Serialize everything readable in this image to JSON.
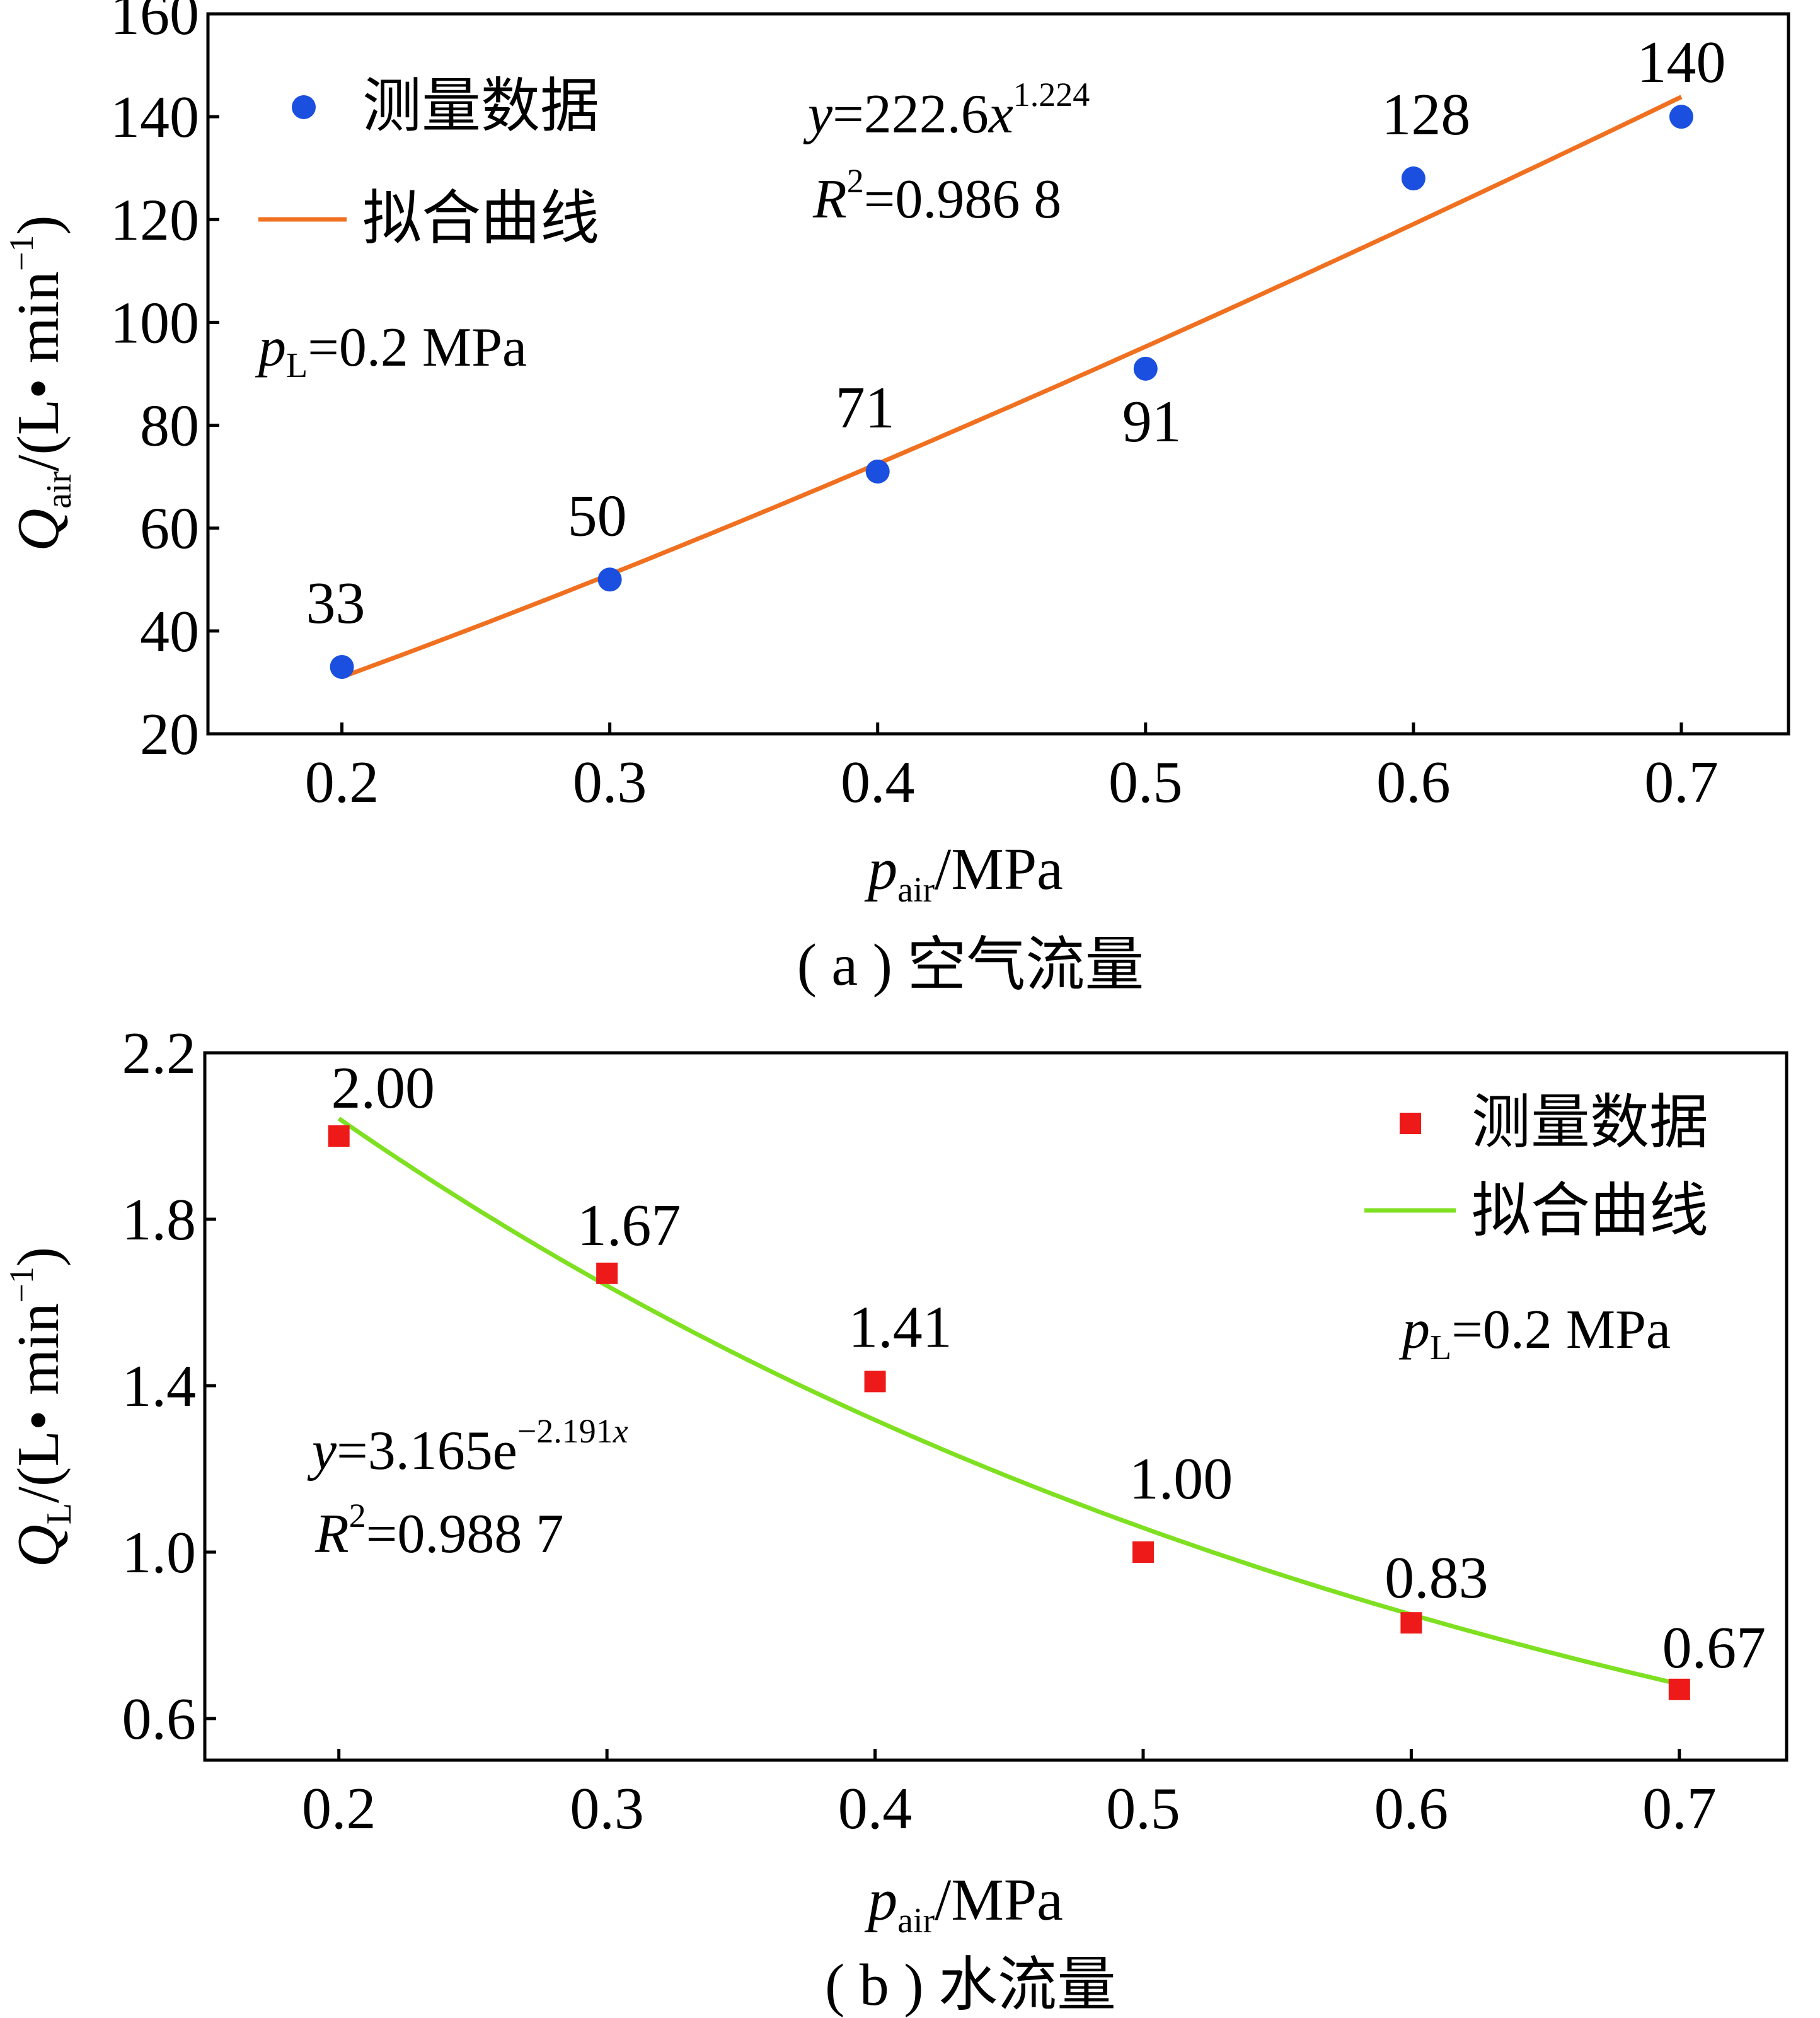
{
  "chart_data": [
    {
      "type": "scatter",
      "caption": "( a ) 空气流量",
      "xlabel": {
        "main": "p",
        "sub": "air",
        "unit": "/MPa"
      },
      "ylabel": {
        "main": "Q",
        "sub": "air",
        "unit": "/(L• min",
        "sup": "−1",
        "close": ")"
      },
      "xlim": [
        0.15,
        0.74
      ],
      "ylim": [
        20,
        160
      ],
      "xticks": [
        0.2,
        0.3,
        0.4,
        0.5,
        0.6,
        0.7
      ],
      "xtick_labels": [
        "0.2",
        "0.3",
        "0.4",
        "0.5",
        "0.6",
        "0.7"
      ],
      "yticks": [
        20,
        40,
        60,
        80,
        100,
        120,
        140,
        160
      ],
      "ytick_labels": [
        "20",
        "40",
        "60",
        "80",
        "100",
        "120",
        "140",
        "160"
      ],
      "legend_position": "top-left",
      "series": [
        {
          "name": "测量数据",
          "kind": "points",
          "marker": "circle",
          "color": "#1a4fe0",
          "x": [
            0.2,
            0.3,
            0.4,
            0.5,
            0.6,
            0.7
          ],
          "y": [
            33,
            50,
            71,
            91,
            128,
            140
          ],
          "labels": [
            "33",
            "50",
            "71",
            "91",
            "128",
            "140"
          ]
        },
        {
          "name": "拟合曲线",
          "kind": "fit",
          "color": "#f07020",
          "model": "power",
          "a": 222.6,
          "b": 1.224,
          "x_range": [
            0.2,
            0.7
          ]
        }
      ],
      "equation": {
        "y": "y",
        "eq": "=222.6",
        "x": "x",
        "exp": "1.224"
      },
      "r2": {
        "r": "R",
        "sup": "2",
        "value": "=0.986 8"
      },
      "condition": {
        "p": "p",
        "sub": "L",
        "value": "=0.2 MPa"
      }
    },
    {
      "type": "scatter",
      "caption": "( b ) 水流量",
      "xlabel": {
        "main": "p",
        "sub": "air",
        "unit": "/MPa"
      },
      "ylabel": {
        "main": "Q",
        "sub": "L",
        "unit": "/(L• min",
        "sup": "−1",
        "close": ")"
      },
      "xlim": [
        0.15,
        0.74
      ],
      "ylim": [
        0.5,
        2.2
      ],
      "xticks": [
        0.2,
        0.3,
        0.4,
        0.5,
        0.6,
        0.7
      ],
      "xtick_labels": [
        "0.2",
        "0.3",
        "0.4",
        "0.5",
        "0.6",
        "0.7"
      ],
      "yticks": [
        0.6,
        1.0,
        1.4,
        1.8,
        2.2
      ],
      "ytick_labels": [
        "0.6",
        "1.0",
        "1.4",
        "1.8",
        "2.2"
      ],
      "legend_position": "top-right",
      "series": [
        {
          "name": "测量数据",
          "kind": "points",
          "marker": "square",
          "color": "#ee1a1a",
          "x": [
            0.2,
            0.3,
            0.4,
            0.5,
            0.6,
            0.7
          ],
          "y": [
            2.0,
            1.67,
            1.41,
            1.0,
            0.83,
            0.67
          ],
          "labels": [
            "2.00",
            "1.67",
            "1.41",
            "1.00",
            "0.83",
            "0.67"
          ]
        },
        {
          "name": "拟合曲线",
          "kind": "fit",
          "color": "#7ee021",
          "model": "exponential",
          "a": 3.165,
          "b": -2.191,
          "x_range": [
            0.2,
            0.7
          ]
        }
      ],
      "equation": {
        "y": "y",
        "eq": "=3.165e",
        "exp": "−2.191",
        "exp_x": "x"
      },
      "r2": {
        "r": "R",
        "sup": "2",
        "value": "=0.988 7"
      },
      "condition": {
        "p": "p",
        "sub": "L",
        "value": "=0.2 MPa"
      }
    }
  ]
}
